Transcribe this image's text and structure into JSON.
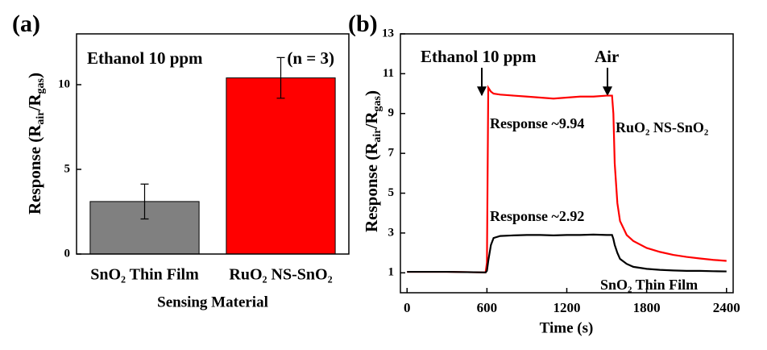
{
  "chart_data": [
    {
      "type": "bar",
      "panel": "(a)",
      "categories": [
        "SnO₂ Thin Film",
        "RuO₂ NS-SnO₂"
      ],
      "values": [
        3.1,
        10.4
      ],
      "errors": [
        1.03,
        1.2
      ],
      "colors": [
        "#808080",
        "#ff0000"
      ],
      "ylim": [
        0,
        13
      ],
      "yticks": [
        0,
        5,
        10
      ],
      "xlabel": "Sensing Material",
      "ylabel": [
        "Response (R",
        "air",
        "/R",
        "gas",
        ")"
      ],
      "annotations": [
        "Ethanol 10 ppm",
        "(n = 3)"
      ]
    },
    {
      "type": "line",
      "panel": "(b)",
      "x": [
        0,
        100,
        200,
        300,
        400,
        500,
        590,
        600,
        610,
        630,
        650,
        700,
        800,
        900,
        1000,
        1100,
        1200,
        1300,
        1400,
        1500,
        1540,
        1550,
        1560,
        1580,
        1600,
        1650,
        1700,
        1800,
        1900,
        2000,
        2100,
        2200,
        2300,
        2400
      ],
      "series": [
        {
          "name": "RuO₂ NS-SnO₂",
          "color": "#ff0000",
          "values": [
            1.05,
            1.05,
            1.05,
            1.05,
            1.04,
            1.03,
            1.02,
            1.5,
            10.3,
            10.1,
            10.0,
            9.95,
            9.9,
            9.85,
            9.8,
            9.75,
            9.8,
            9.85,
            9.85,
            9.9,
            9.9,
            9.0,
            6.5,
            4.5,
            3.6,
            2.9,
            2.6,
            2.25,
            2.05,
            1.9,
            1.8,
            1.72,
            1.65,
            1.6
          ]
        },
        {
          "name": "SnO₂ Thin Film",
          "color": "#000000",
          "values": [
            1.05,
            1.05,
            1.05,
            1.05,
            1.04,
            1.03,
            1.02,
            1.1,
            1.6,
            2.4,
            2.75,
            2.85,
            2.88,
            2.9,
            2.9,
            2.88,
            2.9,
            2.9,
            2.92,
            2.9,
            2.9,
            2.7,
            2.4,
            2.0,
            1.7,
            1.45,
            1.3,
            1.2,
            1.15,
            1.12,
            1.1,
            1.1,
            1.08,
            1.07
          ]
        }
      ],
      "xlim": [
        -50,
        2450
      ],
      "xticks": [
        0,
        600,
        1200,
        1800,
        2400
      ],
      "ylim": [
        0,
        13
      ],
      "yticks": [
        1,
        3,
        5,
        7,
        9,
        11,
        13
      ],
      "xlabel": "Time (s)",
      "ylabel": [
        "Response (R",
        "air",
        "/R",
        "gas",
        ")"
      ],
      "annotations": [
        "Ethanol 10 ppm",
        "Air",
        "Response ~9.94",
        "Response ~2.92"
      ]
    }
  ]
}
